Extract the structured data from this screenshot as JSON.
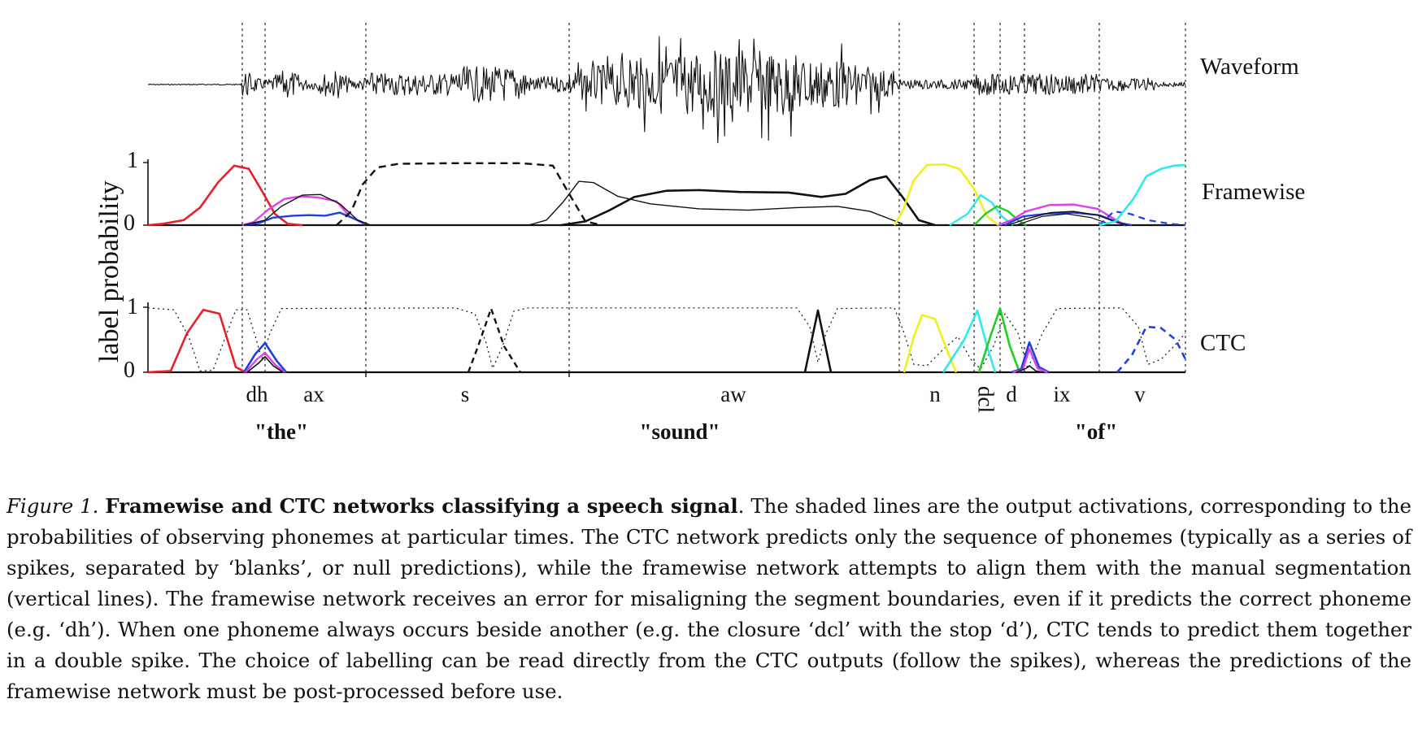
{
  "figure": {
    "panel_labels": {
      "waveform": "Waveform",
      "framewise": "Framewise",
      "ctc": "CTC"
    },
    "ylabel": "label probability",
    "ticks": {
      "one": "1",
      "zero": "0"
    },
    "phonemes": [
      "dh",
      "ax",
      "s",
      "aw",
      "n",
      "dcl",
      "d",
      "ix",
      "v"
    ],
    "words": [
      "\"the\"",
      "\"sound\"",
      "\"of\""
    ],
    "colors": {
      "red": "#e8202a",
      "magenta": "#e040e8",
      "blue": "#1f3fe0",
      "black": "#111111",
      "yellow": "#f0f020",
      "cyan": "#30e8f0",
      "green": "#20d020"
    }
  },
  "caption": {
    "number": "Figure 1.",
    "title": "Framewise and CTC networks classifying a speech signal",
    "body": ". The shaded lines are the output activations, corresponding to the probabilities of observing phonemes at particular times.  The CTC network predicts only the sequence of phonemes (typically as a series of spikes, separated by ‘blanks’, or null predictions), while the framewise network attempts to align them with the manual segmentation (vertical lines). The framewise network receives an error for misaligning the segment boundaries, even if it predicts the correct phoneme (e.g. ‘dh’).  When one phoneme always occurs beside another (e.g. the closure ‘dcl’ with the stop ‘d’), CTC tends to predict them together in a double spike. The choice of labelling can be read directly from the CTC outputs (follow the spikes), whereas the predictions of the framewise network must be post-processed before use."
  }
}
